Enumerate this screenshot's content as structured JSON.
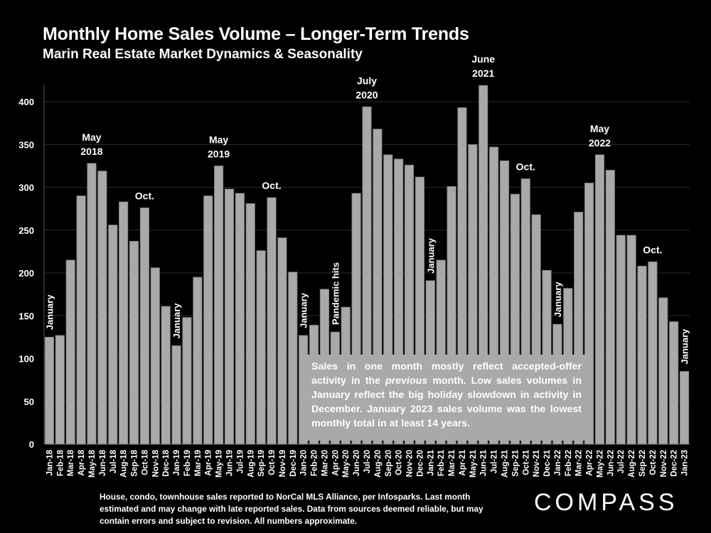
{
  "title": "Monthly Home Sales Volume – Longer-Term Trends",
  "subtitle": "Marin Real Estate Market Dynamics & Seasonality",
  "note": {
    "before": "Sales in one month mostly reflect accepted-offer activity in the ",
    "emphasis": "previous",
    "after": " month. Low sales volumes in January reflect the big holiday slowdown in activity in December. January 2023 sales volume was the lowest monthly  total in at least 14 years."
  },
  "footnote": "House, condo, townhouse sales reported to NorCal MLS Alliance, per Infosparks. Last month estimated and may change with late reported sales. Data from sources deemed reliable, but may contain errors and subject to revision. All numbers approximate.",
  "logo": "COMPASS",
  "colors": {
    "background": "#000000",
    "bar": "#a9a9a9",
    "bar_stroke": "#7a7a7a",
    "grid": "#2b2b2b",
    "text": "#ffffff"
  },
  "chart_data": {
    "type": "bar",
    "title": "Monthly Home Sales Volume – Longer-Term Trends",
    "subtitle": "Marin Real Estate Market Dynamics & Seasonality",
    "xlabel": "",
    "ylabel": "",
    "ylim": [
      0,
      420
    ],
    "yticks": [
      0,
      50,
      100,
      150,
      200,
      250,
      300,
      350,
      400
    ],
    "grid": true,
    "categories": [
      "Jan-18",
      "Feb-18",
      "Mar-18",
      "Apr-18",
      "May-18",
      "Jun-18",
      "Jul-18",
      "Aug-18",
      "Sep-18",
      "Oct-18",
      "Nov-18",
      "Dec-18",
      "Jan-19",
      "Feb-19",
      "Mar-19",
      "Apr-19",
      "May-19",
      "Jun-19",
      "Jul-19",
      "Aug-19",
      "Sep-19",
      "Oct-19",
      "Nov-19",
      "Dec-19",
      "Jan-20",
      "Feb-20",
      "Mar-20",
      "Apr-20",
      "May-20",
      "Jun-20",
      "Jul-20",
      "Aug-20",
      "Sep-20",
      "Oct-20",
      "Nov-20",
      "Dec-20",
      "Jan-21",
      "Feb-21",
      "Mar-21",
      "Apr-21",
      "May-21",
      "Jun-21",
      "Jul-21",
      "Aug-21",
      "Sep-21",
      "Oct-21",
      "Nov-21",
      "Dec-21",
      "Jan-22",
      "Feb-22",
      "Mar-22",
      "Apr-22",
      "May-22",
      "Jun-22",
      "Jul-22",
      "Aug-22",
      "Sep-22",
      "Oct-22",
      "Nov-22",
      "Dec-22",
      "Jan-23"
    ],
    "values": [
      125,
      127,
      215,
      290,
      328,
      319,
      256,
      283,
      237,
      276,
      206,
      161,
      115,
      148,
      195,
      290,
      325,
      298,
      293,
      281,
      226,
      288,
      241,
      201,
      127,
      139,
      181,
      131,
      160,
      293,
      394,
      368,
      338,
      333,
      326,
      312,
      191,
      215,
      301,
      393,
      350,
      419,
      347,
      331,
      292,
      310,
      268,
      203,
      140,
      182,
      271,
      305,
      338,
      320,
      244,
      244,
      208,
      213,
      171,
      143,
      85
    ],
    "annotations": [
      {
        "index": 0,
        "text": "January",
        "style": "vertical"
      },
      {
        "index": 4,
        "text": [
          "May",
          "2018"
        ],
        "style": "above"
      },
      {
        "index": 9,
        "text": [
          "Oct."
        ],
        "style": "above"
      },
      {
        "index": 12,
        "text": "January",
        "style": "vertical"
      },
      {
        "index": 16,
        "text": [
          "May",
          "2019"
        ],
        "style": "above"
      },
      {
        "index": 21,
        "text": [
          "Oct."
        ],
        "style": "above"
      },
      {
        "index": 24,
        "text": "January",
        "style": "vertical"
      },
      {
        "index": 27,
        "text": "Pandemic hits",
        "style": "vertical"
      },
      {
        "index": 30,
        "text": [
          "July",
          "2020"
        ],
        "style": "above"
      },
      {
        "index": 36,
        "text": "January",
        "style": "vertical"
      },
      {
        "index": 41,
        "text": [
          "June",
          "2021"
        ],
        "style": "above"
      },
      {
        "index": 45,
        "text": [
          "Oct."
        ],
        "style": "above"
      },
      {
        "index": 48,
        "text": "January",
        "style": "vertical"
      },
      {
        "index": 52,
        "text": [
          "May",
          "2022"
        ],
        "style": "above"
      },
      {
        "index": 57,
        "text": [
          "Oct."
        ],
        "style": "above"
      },
      {
        "index": 60,
        "text": "January",
        "style": "vertical"
      }
    ]
  }
}
